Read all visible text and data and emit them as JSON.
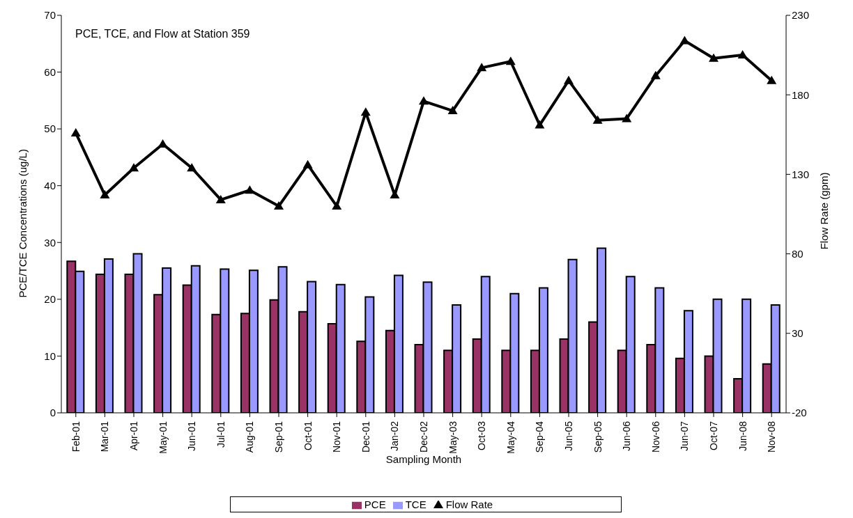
{
  "chart_data": {
    "type": "bar",
    "title": "PCE, TCE, and Flow at Station 359",
    "xlabel": "Sampling Month",
    "ylabel": "PCE/TCE Concentrations (ug/L)",
    "y2label": "Flow Rate (gpm)",
    "categories": [
      "Feb-01",
      "Mar-01",
      "Apr-01",
      "May-01",
      "Jun-01",
      "Jul-01",
      "Aug-01",
      "Sep-01",
      "Oct-01",
      "Nov-01",
      "Dec-01",
      "Jan-02",
      "Dec-02",
      "May-03",
      "Oct-03",
      "May-04",
      "Sep-04",
      "Jun-05",
      "Sep-05",
      "Jun-06",
      "Nov-06",
      "Jun-07",
      "Oct-07",
      "Jun-08",
      "Nov-08"
    ],
    "series": [
      {
        "name": "PCE",
        "color": "#993366",
        "values": [
          26.7,
          24.4,
          24.4,
          20.8,
          22.5,
          17.3,
          17.5,
          19.9,
          17.8,
          15.7,
          12.6,
          14.5,
          12,
          11,
          13,
          11,
          11,
          13,
          16,
          11,
          12,
          9.6,
          10,
          6,
          8.6
        ]
      },
      {
        "name": "TCE",
        "color": "#9999ff",
        "values": [
          24.9,
          27.1,
          28,
          25.5,
          25.9,
          25.3,
          25.1,
          25.7,
          23.1,
          22.6,
          20.4,
          24.2,
          23,
          19,
          24,
          21,
          22,
          27,
          29,
          24,
          22,
          18,
          20,
          20,
          19
        ]
      },
      {
        "name": "Flow Rate",
        "type": "line",
        "axis": "y2",
        "color": "#000000",
        "marker": "triangle",
        "values": [
          156,
          117,
          134,
          149,
          134,
          114,
          120,
          110,
          136,
          110,
          169,
          117,
          176,
          170,
          197,
          201,
          161,
          189,
          164,
          165,
          192,
          214,
          203,
          205,
          189
        ]
      }
    ],
    "ylim": [
      0,
      70
    ],
    "yticks": [
      0,
      10,
      20,
      30,
      40,
      50,
      60,
      70
    ],
    "y2lim": [
      -20,
      230
    ],
    "y2ticks": [
      -20,
      30,
      80,
      130,
      180,
      230
    ],
    "grid": false,
    "legend": "bottom"
  }
}
